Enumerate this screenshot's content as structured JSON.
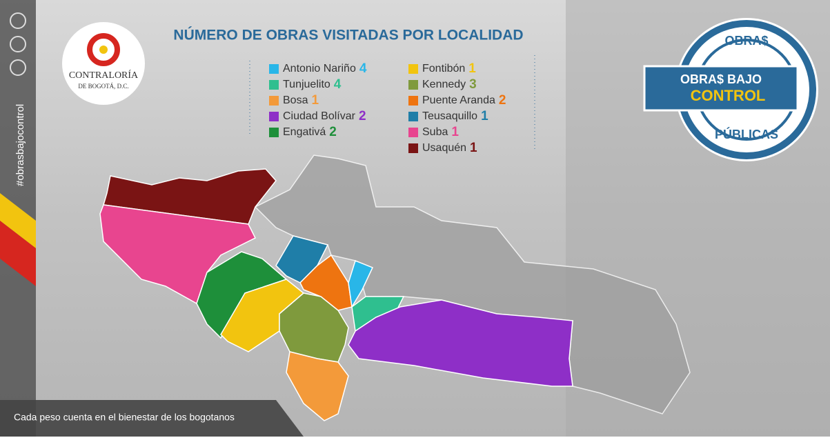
{
  "title": "NÚMERO DE OBRAS VISITADAS POR LOCALIDAD",
  "sidebar": {
    "hashtag": "#obrasbajocontrol"
  },
  "logo": {
    "name": "CONTRALORÍA",
    "place": "DE BOGOTÁ, D.C."
  },
  "badge": {
    "top": "OBRA$",
    "banner_line1": "OBRA$ BAJO",
    "banner_line2": "CONTROL",
    "bottom": "PÚBLICAS"
  },
  "legend": [
    {
      "name": "Antonio Nariño",
      "count": 4,
      "color": "#29b6e8"
    },
    {
      "name": "Tunjuelito",
      "count": 4,
      "color": "#2fbf8f"
    },
    {
      "name": "Bosa",
      "count": 1,
      "color": "#f39a3a"
    },
    {
      "name": "Ciudad Bolívar",
      "count": 2,
      "color": "#8e2fc7"
    },
    {
      "name": "Engativá",
      "count": 2,
      "color": "#1e8f3a"
    },
    {
      "name": "Fontibón",
      "count": 1,
      "color": "#f2c40f"
    },
    {
      "name": "Kennedy",
      "count": 3,
      "color": "#7f9a3d"
    },
    {
      "name": "Puente Aranda",
      "count": 2,
      "color": "#ee7410"
    },
    {
      "name": "Teusaquillo",
      "count": 1,
      "color": "#1f7ea8"
    },
    {
      "name": "Suba",
      "count": 1,
      "color": "#e8458f"
    },
    {
      "name": "Usaquén",
      "count": 1,
      "color": "#7a1414"
    }
  ],
  "footer": "Cada peso cuenta en el bienestar de los bogotanos"
}
